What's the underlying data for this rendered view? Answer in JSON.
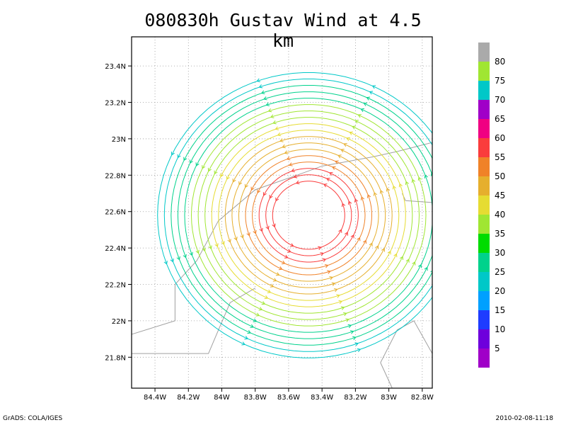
{
  "title": "080830h Gustav Wind at 4.5 km",
  "footer_left": "GrADS: COLA/IGES",
  "footer_right": "2010-02-08-11:18",
  "chart_data": {
    "type": "streamline",
    "title": "080830h Gustav Wind at 4.5 km",
    "x_ticks": [
      "84.4W",
      "84.2W",
      "84W",
      "83.8W",
      "83.6W",
      "83.4W",
      "83.2W",
      "83W",
      "82.8W"
    ],
    "x_tick_values": [
      -84.4,
      -84.2,
      -84.0,
      -83.8,
      -83.6,
      -83.4,
      -83.2,
      -83.0,
      -82.8
    ],
    "y_ticks": [
      "21.8N",
      "22N",
      "22.2N",
      "22.4N",
      "22.6N",
      "22.8N",
      "23N",
      "23.2N",
      "23.4N"
    ],
    "y_tick_values": [
      21.8,
      22.0,
      22.2,
      22.4,
      22.6,
      22.8,
      23.0,
      23.2,
      23.4
    ],
    "xlim": [
      -84.54,
      -82.74
    ],
    "ylim": [
      21.63,
      23.56
    ],
    "grid": true,
    "storm_center": {
      "lon": -83.48,
      "lat": 22.58
    },
    "colorbar": {
      "labels": [
        "5",
        "10",
        "15",
        "20",
        "25",
        "30",
        "35",
        "40",
        "45",
        "50",
        "55",
        "60",
        "65",
        "70",
        "75",
        "80"
      ],
      "colors": [
        "#a000c8",
        "#6e00dc",
        "#1e3cff",
        "#00a0ff",
        "#00c8c8",
        "#00d28c",
        "#00dc00",
        "#a0e632",
        "#e6dc32",
        "#e6af2d",
        "#f08228",
        "#fa3c3c",
        "#f00082",
        "#a000c8",
        "#00c8c8",
        "#a0e632",
        "#aaaaaa"
      ]
    },
    "wind_speed_rings": [
      {
        "radius_deg": 0.28,
        "speed": 62
      },
      {
        "radius_deg": 0.38,
        "speed": 57
      },
      {
        "radius_deg": 0.5,
        "speed": 50
      },
      {
        "radius_deg": 0.62,
        "speed": 45
      },
      {
        "radius_deg": 0.75,
        "speed": 40
      },
      {
        "radius_deg": 0.88,
        "speed": 33
      },
      {
        "radius_deg": 1.0,
        "speed": 25
      }
    ]
  }
}
